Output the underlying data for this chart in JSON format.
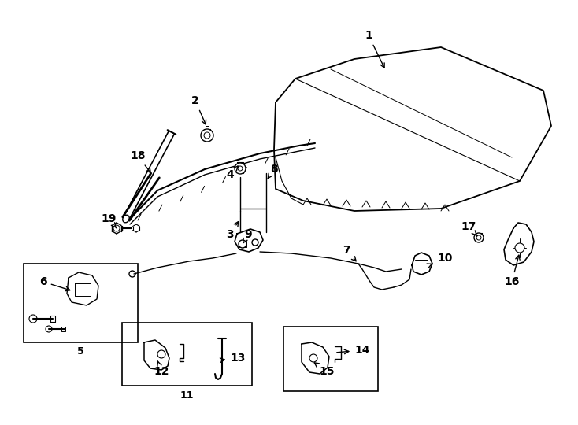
{
  "bg_color": "#ffffff",
  "line_color": "#000000",
  "figsize": [
    7.34,
    5.4
  ],
  "dpi": 100
}
